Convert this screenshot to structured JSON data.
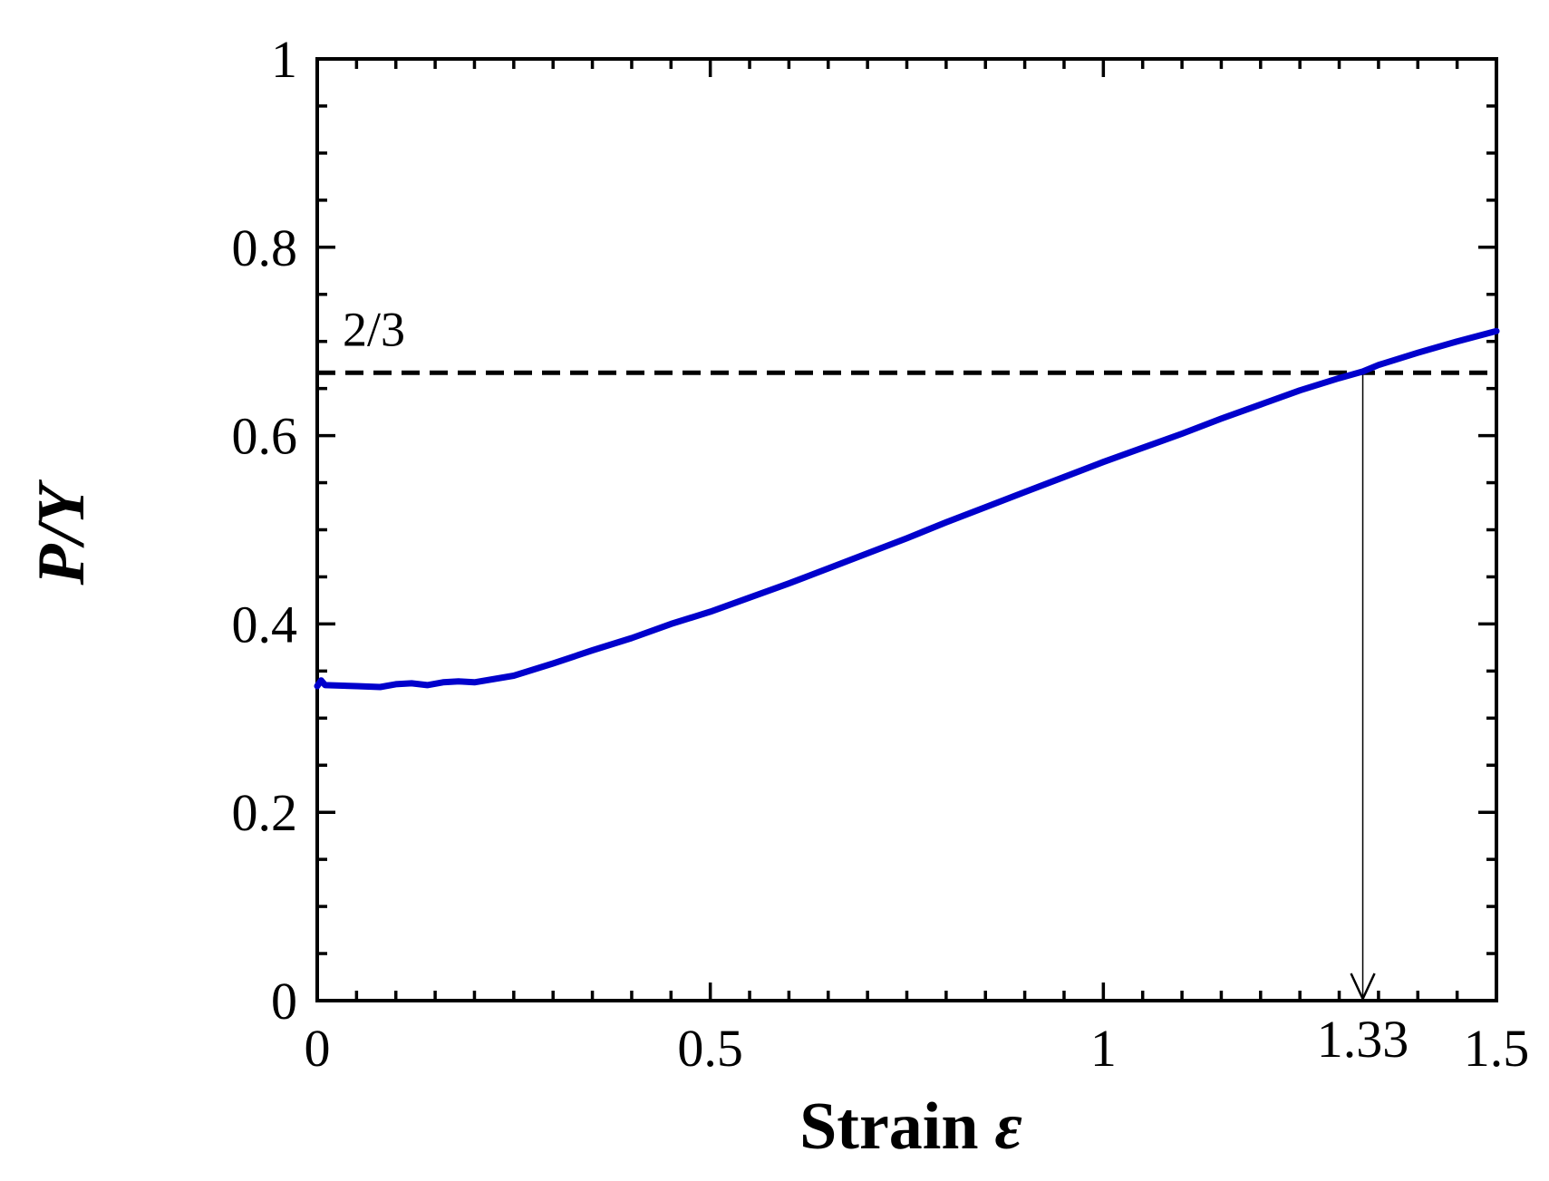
{
  "chart_data": {
    "type": "line",
    "xlabel": "Strain",
    "xlabel_symbol": "ε",
    "ylabel": "P/Y",
    "xlim": [
      0,
      1.5
    ],
    "ylim": [
      0,
      1
    ],
    "x_ticks": [
      0,
      0.5,
      1,
      1.5
    ],
    "x_tick_labels": [
      "0",
      "0.5",
      "1",
      "1.5"
    ],
    "y_ticks": [
      0,
      0.2,
      0.4,
      0.6,
      0.8,
      1
    ],
    "y_tick_labels": [
      "0",
      "0.2",
      "0.4",
      "0.6",
      "0.8",
      "1"
    ],
    "grid": false,
    "series": [
      {
        "color": "#0000cc",
        "x": [
          0,
          0.005,
          0.01,
          0.05,
          0.08,
          0.1,
          0.12,
          0.14,
          0.16,
          0.18,
          0.2,
          0.25,
          0.3,
          0.35,
          0.4,
          0.45,
          0.5,
          0.55,
          0.6,
          0.65,
          0.7,
          0.75,
          0.8,
          0.85,
          0.9,
          0.95,
          1.0,
          1.05,
          1.1,
          1.15,
          1.2,
          1.25,
          1.3,
          1.33,
          1.35,
          1.4,
          1.45,
          1.5
        ],
        "y": [
          0.334,
          0.34,
          0.335,
          0.334,
          0.333,
          0.336,
          0.337,
          0.335,
          0.338,
          0.339,
          0.338,
          0.345,
          0.358,
          0.372,
          0.385,
          0.4,
          0.413,
          0.428,
          0.443,
          0.459,
          0.475,
          0.491,
          0.508,
          0.524,
          0.54,
          0.556,
          0.572,
          0.587,
          0.602,
          0.618,
          0.633,
          0.648,
          0.661,
          0.668,
          0.675,
          0.688,
          0.7,
          0.711
        ]
      }
    ],
    "reference_line": {
      "y": 0.6667,
      "label": "2/3",
      "style": "dashed"
    },
    "annotation": {
      "x": 1.33,
      "label": "1.33",
      "style": "arrow-down"
    }
  }
}
